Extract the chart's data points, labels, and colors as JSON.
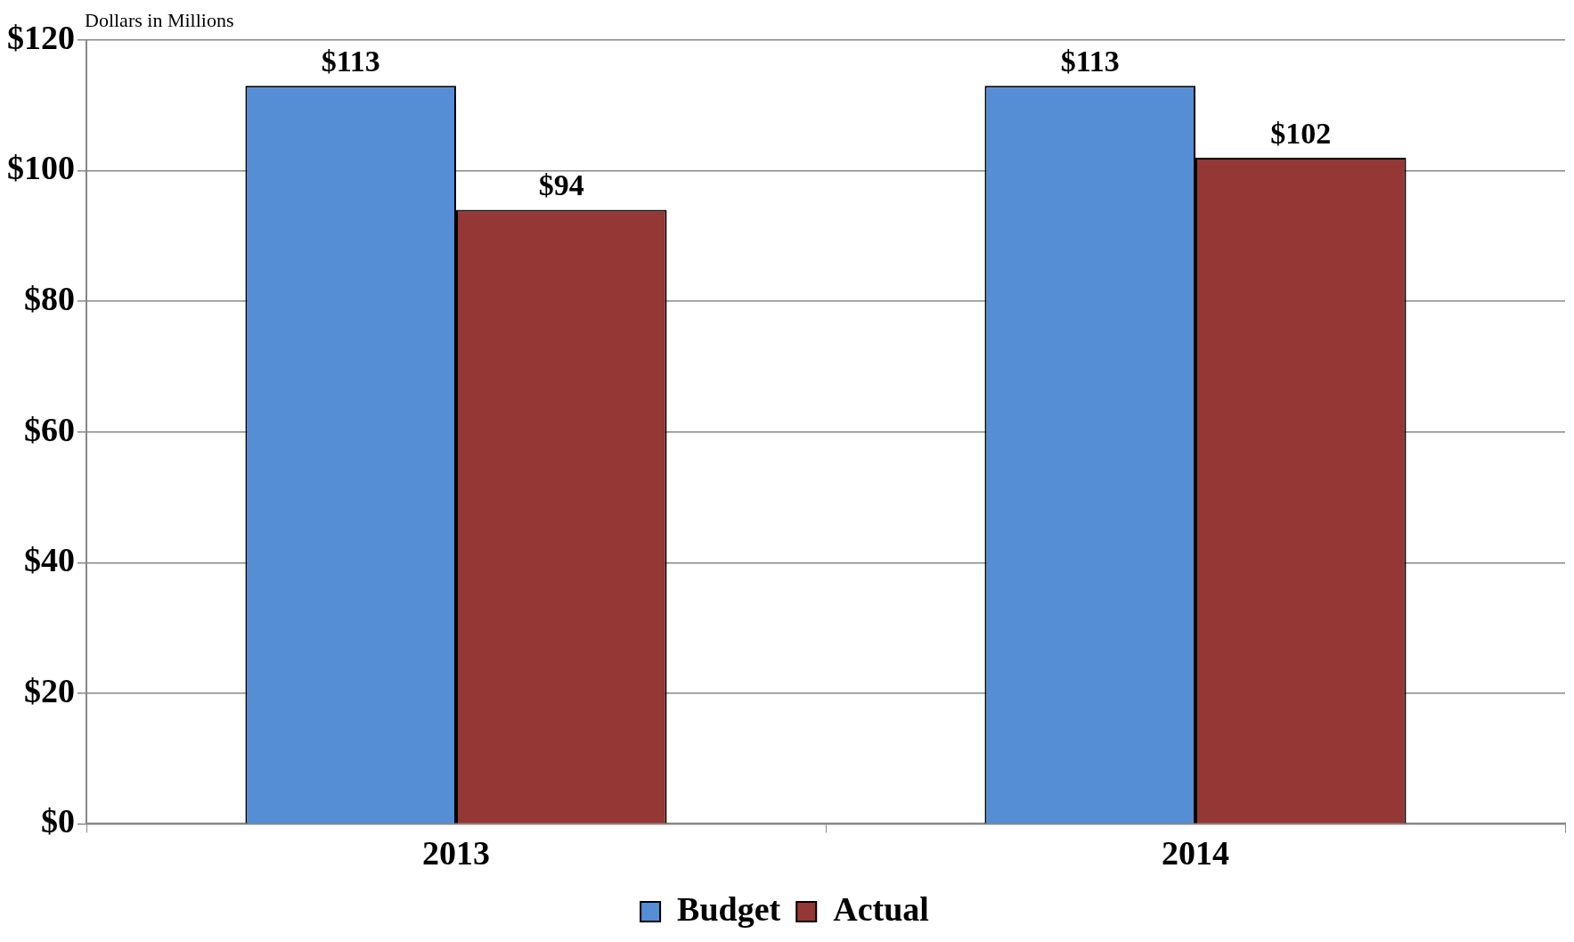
{
  "chart_data": {
    "type": "bar",
    "ylabel": "Dollars in Millions",
    "categories": [
      "2013",
      "2014"
    ],
    "series": [
      {
        "name": "Budget",
        "color": "#558ed5",
        "values": [
          113,
          113
        ],
        "value_labels": [
          "$113",
          "$113"
        ]
      },
      {
        "name": "Actual",
        "color": "#953735",
        "values": [
          94,
          102
        ],
        "value_labels": [
          "$94",
          "$102"
        ]
      }
    ],
    "ylim": [
      0,
      120
    ],
    "yticks": [
      {
        "value": 0,
        "label": "$0"
      },
      {
        "value": 20,
        "label": "$20"
      },
      {
        "value": 40,
        "label": "$40"
      },
      {
        "value": 60,
        "label": "$60"
      },
      {
        "value": 80,
        "label": "$80"
      },
      {
        "value": 100,
        "label": "$100"
      },
      {
        "value": 120,
        "label": "$120"
      }
    ],
    "grid": "y",
    "legend": "bottom"
  }
}
